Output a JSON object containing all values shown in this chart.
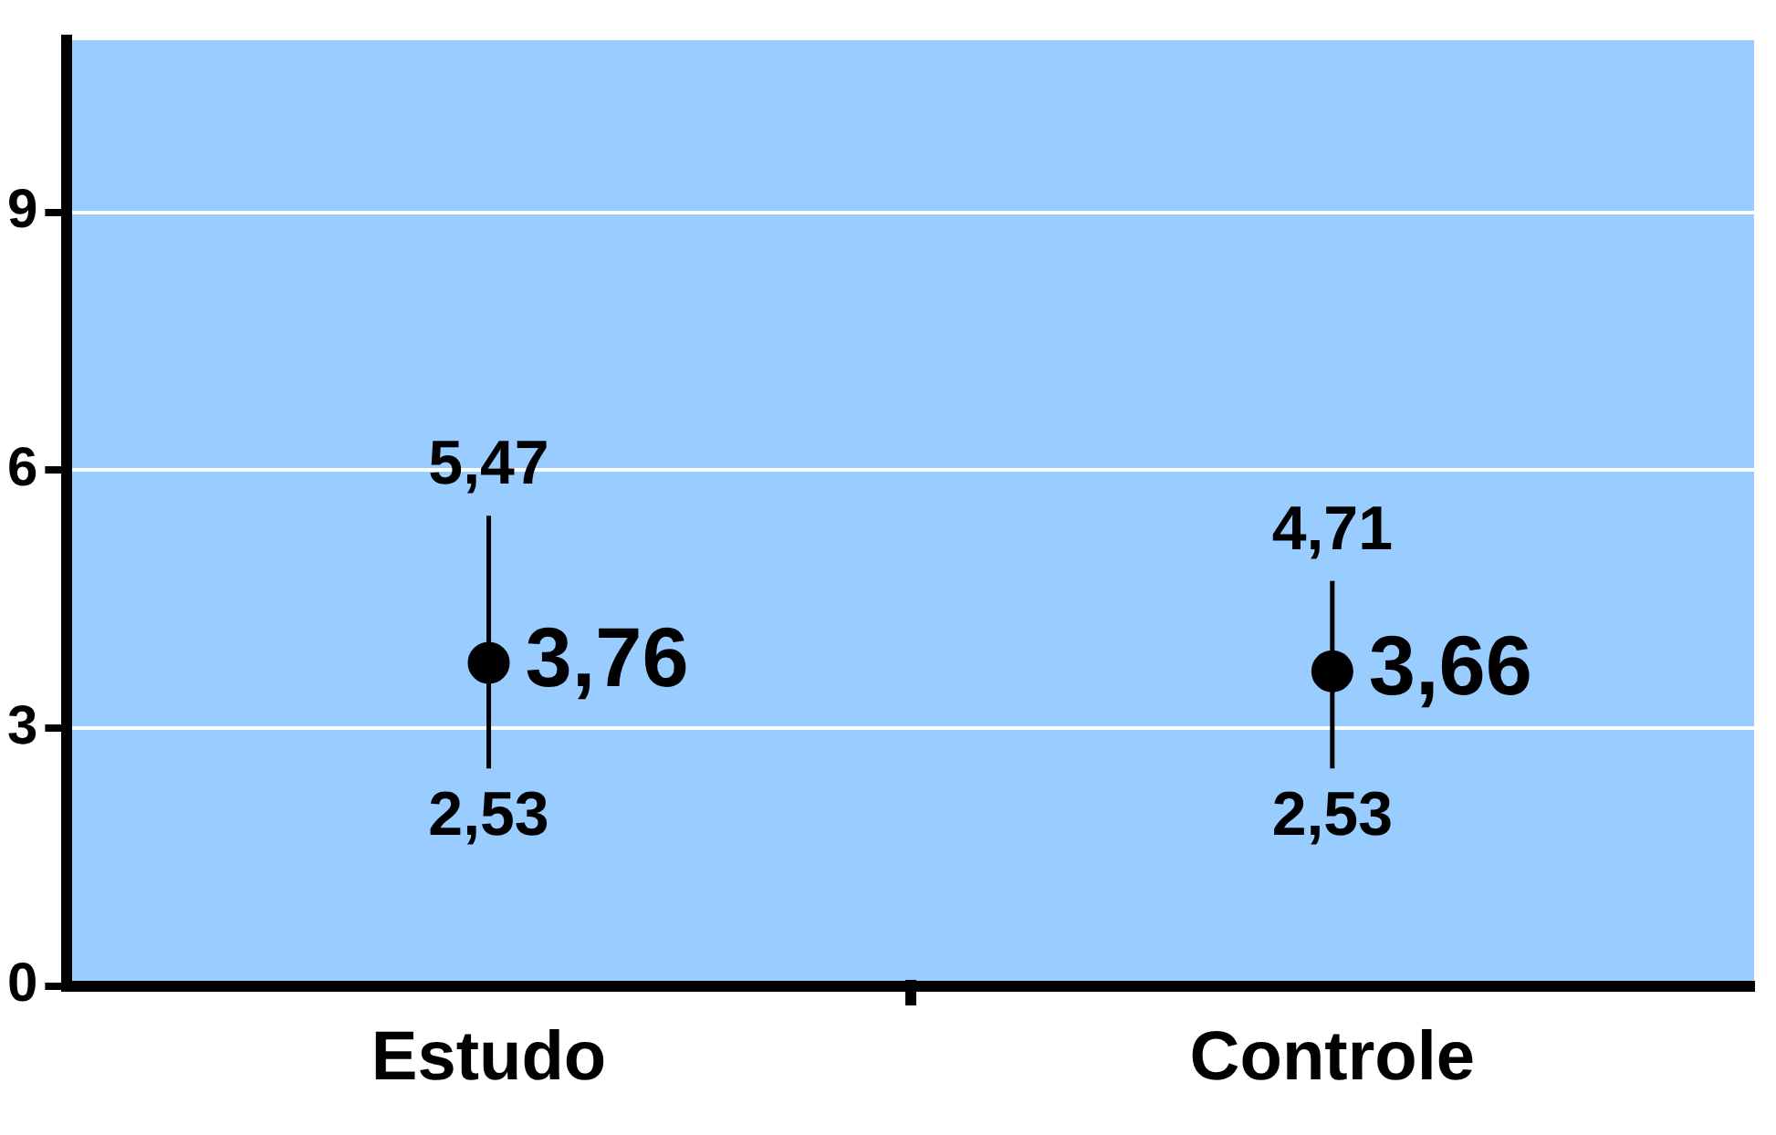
{
  "chart_data": {
    "type": "scatter",
    "categories": [
      "Estudo",
      "Controle"
    ],
    "series": [
      {
        "color": "#000000",
        "values": [
          3.76,
          3.66
        ],
        "errors": [
          [
            2.53,
            5.47
          ],
          [
            2.53,
            4.71
          ]
        ],
        "value_labels": [
          "3,76",
          "3,66"
        ]
      }
    ],
    "annotations": [
      {
        "text": "5,47",
        "x": "Estudo",
        "y": 5.47
      },
      {
        "text": "2,53",
        "x": "Estudo",
        "y": 2.53
      },
      {
        "text": "4,71",
        "x": "Controle",
        "y": 4.71
      },
      {
        "text": "2,53",
        "x": "Controle",
        "y": 2.53
      }
    ],
    "ylim": [
      0,
      11
    ],
    "yticks": [
      0,
      3,
      6,
      9
    ],
    "grid": "y",
    "marker": "circle",
    "legend": false
  }
}
